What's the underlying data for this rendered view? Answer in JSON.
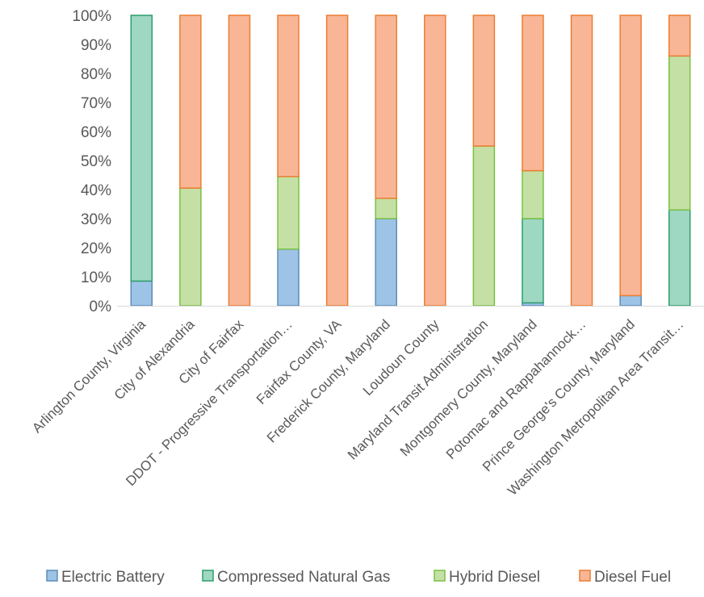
{
  "chart_data": {
    "type": "bar",
    "stacked": "percent",
    "categories": [
      "Arlington County, Virginia",
      "City of Alexandria",
      "City of Fairfax",
      "DDOT - Progressive Transportation…",
      "Fairfax County, VA",
      "Frederick County, Maryland",
      "Loudoun County",
      "Maryland Transit Administration",
      "Montgomery County, Maryland",
      "Potomac and Rappahannock…",
      "Prince George's County, Maryland",
      "Washington Metropolitan Area Transit…"
    ],
    "series": [
      {
        "name": "Electric Battery",
        "color": "#9dc3e6",
        "stroke": "#5b8db8",
        "values": [
          8.5,
          0,
          0,
          19.5,
          0,
          30,
          0,
          0,
          1,
          0,
          3.5,
          0
        ]
      },
      {
        "name": "Compressed Natural Gas",
        "color": "#9ed8c2",
        "stroke": "#2e9e6e",
        "values": [
          91.5,
          0,
          0,
          0,
          0,
          0,
          0,
          0,
          29,
          0,
          0,
          33
        ]
      },
      {
        "name": "Hybrid Diesel",
        "color": "#c5e0a5",
        "stroke": "#7ac143",
        "values": [
          0,
          40.5,
          0,
          25,
          0,
          7,
          0,
          55,
          16.5,
          0,
          0,
          53
        ]
      },
      {
        "name": "Diesel Fuel",
        "color": "#f8b696",
        "stroke": "#ed7d31",
        "values": [
          0,
          59.5,
          100,
          55.5,
          100,
          63,
          100,
          45,
          53.5,
          100,
          96.5,
          14
        ]
      }
    ],
    "y_ticks": [
      "0%",
      "10%",
      "20%",
      "30%",
      "40%",
      "50%",
      "60%",
      "70%",
      "80%",
      "90%",
      "100%"
    ],
    "ylim": [
      0,
      100
    ],
    "grid": false,
    "legend_position": "bottom",
    "title": "",
    "xlabel": "",
    "ylabel": ""
  }
}
